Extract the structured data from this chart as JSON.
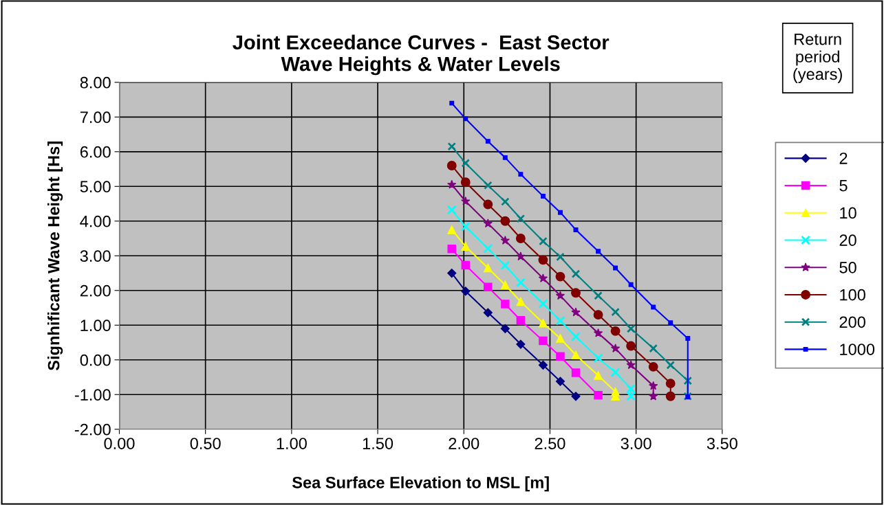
{
  "chart_data": {
    "type": "line",
    "title": "Joint Exceedance Curves -  East Sector\nWave Heights & Water Levels",
    "xlabel": "Sea Surface Elevation to MSL [m]",
    "ylabel": "Signhificant Wave Height [Hs]",
    "legend_title": "Return\nperiod\n(years)",
    "legend": "right",
    "grid": true,
    "xlim": [
      0,
      3.5
    ],
    "ylim": [
      -2,
      8
    ],
    "xticks": [
      {
        "value": 0,
        "label": "0.00"
      },
      {
        "value": 0.5,
        "label": "0.50"
      },
      {
        "value": 1,
        "label": "1.00"
      },
      {
        "value": 1.5,
        "label": "1.50"
      },
      {
        "value": 2,
        "label": "2.00"
      },
      {
        "value": 2.5,
        "label": "2.50"
      },
      {
        "value": 3,
        "label": "3.00"
      },
      {
        "value": 3.5,
        "label": "3.50"
      }
    ],
    "yticks": [
      {
        "value": -2,
        "label": "-2.00"
      },
      {
        "value": -1,
        "label": "-1.00"
      },
      {
        "value": 0,
        "label": "0.00"
      },
      {
        "value": 1,
        "label": "1.00"
      },
      {
        "value": 2,
        "label": "2.00"
      },
      {
        "value": 3,
        "label": "3.00"
      },
      {
        "value": 4,
        "label": "4.00"
      },
      {
        "value": 5,
        "label": "5.00"
      },
      {
        "value": 6,
        "label": "6.00"
      },
      {
        "value": 7,
        "label": "7.00"
      },
      {
        "value": 8,
        "label": "8.00"
      }
    ],
    "series": [
      {
        "name": "2",
        "color": "#000080",
        "marker": "diamond",
        "x": [
          1.93,
          2.01,
          2.14,
          2.24,
          2.33,
          2.46,
          2.56,
          2.65
        ],
        "values": [
          2.5,
          1.98,
          1.36,
          0.9,
          0.45,
          -0.15,
          -0.62,
          -1.05
        ]
      },
      {
        "name": "5",
        "color": "#ff00ff",
        "marker": "square",
        "x": [
          1.93,
          2.01,
          2.14,
          2.24,
          2.33,
          2.46,
          2.56,
          2.65,
          2.78
        ],
        "values": [
          3.2,
          2.73,
          2.1,
          1.61,
          1.14,
          0.55,
          0.1,
          -0.37,
          -1.02
        ]
      },
      {
        "name": "10",
        "color": "#ffff00",
        "marker": "triangle",
        "x": [
          1.93,
          2.01,
          2.14,
          2.24,
          2.33,
          2.46,
          2.56,
          2.65,
          2.78,
          2.88,
          2.88
        ],
        "values": [
          3.75,
          3.27,
          2.65,
          2.16,
          1.68,
          1.06,
          0.62,
          0.14,
          -0.45,
          -0.92,
          -1.05
        ]
      },
      {
        "name": "20",
        "color": "#00ffff",
        "marker": "cross",
        "x": [
          1.93,
          2.01,
          2.14,
          2.24,
          2.33,
          2.46,
          2.56,
          2.65,
          2.78,
          2.88,
          2.97,
          2.97
        ],
        "values": [
          4.32,
          3.84,
          3.21,
          2.72,
          2.23,
          1.62,
          1.13,
          0.67,
          0.05,
          -0.36,
          -0.83,
          -1.05
        ]
      },
      {
        "name": "50",
        "color": "#800080",
        "marker": "star",
        "x": [
          1.93,
          2.01,
          2.14,
          2.24,
          2.33,
          2.46,
          2.56,
          2.65,
          2.78,
          2.88,
          2.97,
          3.1,
          3.1
        ],
        "values": [
          5.05,
          4.57,
          3.93,
          3.44,
          2.98,
          2.35,
          1.85,
          1.37,
          0.77,
          0.33,
          -0.15,
          -0.75,
          -1.05
        ]
      },
      {
        "name": "100",
        "color": "#800000",
        "marker": "circle",
        "x": [
          1.93,
          2.01,
          2.14,
          2.24,
          2.33,
          2.46,
          2.56,
          2.65,
          2.78,
          2.88,
          2.97,
          3.1,
          3.2,
          3.2
        ],
        "values": [
          5.6,
          5.12,
          4.48,
          4.0,
          3.5,
          2.88,
          2.4,
          1.93,
          1.3,
          0.83,
          0.4,
          -0.2,
          -0.68,
          -1.05
        ]
      },
      {
        "name": "200",
        "color": "#008080",
        "marker": "cross",
        "x": [
          1.93,
          2.01,
          2.14,
          2.24,
          2.33,
          2.46,
          2.56,
          2.65,
          2.78,
          2.88,
          2.97,
          3.1,
          3.2,
          3.3,
          3.3
        ],
        "values": [
          6.15,
          5.67,
          5.03,
          4.56,
          4.07,
          3.42,
          2.97,
          2.48,
          1.85,
          1.38,
          0.9,
          0.33,
          -0.15,
          -0.6,
          -1.05
        ]
      },
      {
        "name": "1000",
        "color": "#0000ff",
        "marker": "square",
        "x": [
          1.93,
          2.01,
          2.14,
          2.24,
          2.33,
          2.46,
          2.56,
          2.65,
          2.78,
          2.88,
          2.97,
          3.1,
          3.2,
          3.3,
          3.3
        ],
        "values": [
          7.4,
          6.95,
          6.3,
          5.83,
          5.35,
          4.72,
          4.25,
          3.75,
          3.13,
          2.65,
          2.17,
          1.52,
          1.07,
          0.62,
          -1.07
        ]
      }
    ]
  }
}
